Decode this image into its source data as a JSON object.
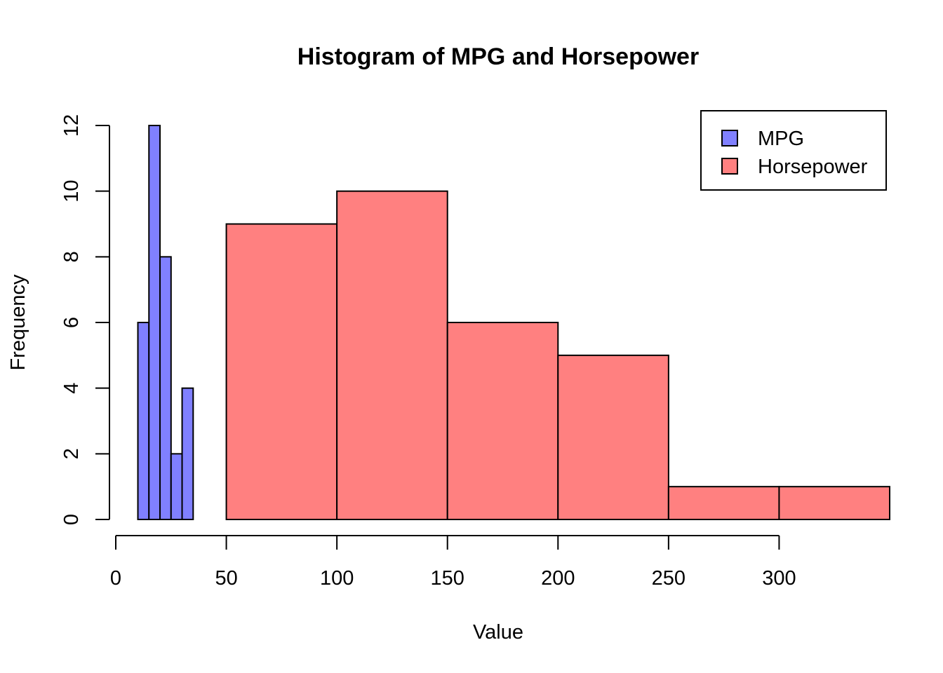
{
  "chart_data": {
    "type": "bar",
    "title": "Histogram of MPG and Horsepower",
    "xlabel": "Value",
    "ylabel": "Frequency",
    "xlim": [
      0,
      350
    ],
    "ylim": [
      0,
      12
    ],
    "x_ticks": [
      "0",
      "50",
      "100",
      "150",
      "200",
      "250",
      "300"
    ],
    "y_ticks": [
      "0",
      "2",
      "4",
      "6",
      "8",
      "10",
      "12"
    ],
    "legend_position": "top-right",
    "series": [
      {
        "name": "MPG",
        "color": "#8080FF",
        "bins": [
          {
            "x0": 10,
            "x1": 15,
            "value": 6
          },
          {
            "x0": 15,
            "x1": 20,
            "value": 12
          },
          {
            "x0": 20,
            "x1": 25,
            "value": 8
          },
          {
            "x0": 25,
            "x1": 30,
            "value": 2
          },
          {
            "x0": 30,
            "x1": 35,
            "value": 4
          }
        ]
      },
      {
        "name": "Horsepower",
        "color": "#FF8080",
        "bins": [
          {
            "x0": 50,
            "x1": 100,
            "value": 9
          },
          {
            "x0": 100,
            "x1": 150,
            "value": 10
          },
          {
            "x0": 150,
            "x1": 200,
            "value": 6
          },
          {
            "x0": 200,
            "x1": 250,
            "value": 5
          },
          {
            "x0": 250,
            "x1": 300,
            "value": 1
          },
          {
            "x0": 300,
            "x1": 350,
            "value": 1
          }
        ]
      }
    ]
  }
}
